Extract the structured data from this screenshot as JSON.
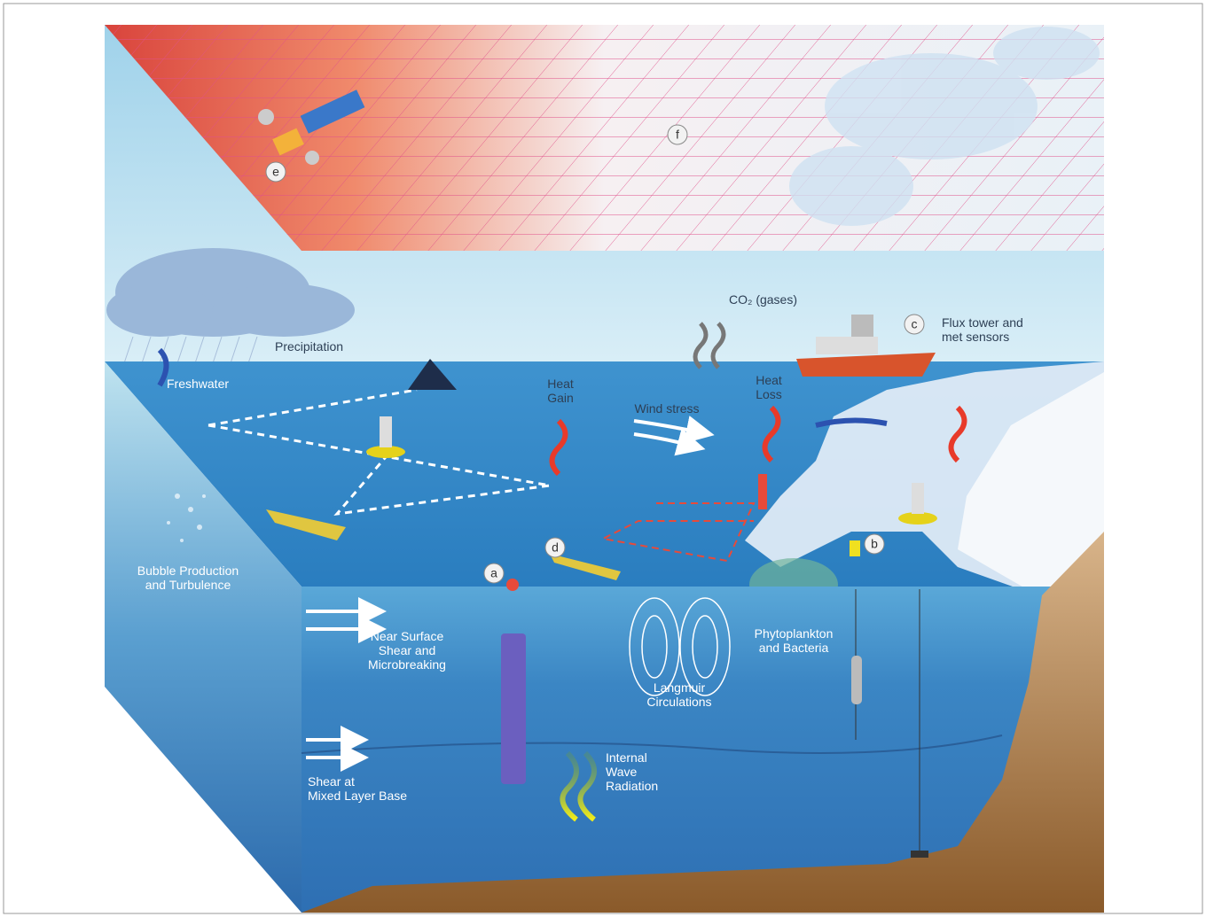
{
  "markers": {
    "a": "a",
    "b": "b",
    "c": "c",
    "d": "d",
    "e": "e",
    "f": "f"
  },
  "labels": {
    "precipitation": [
      "Precipitation"
    ],
    "freshwater": [
      "Freshwater"
    ],
    "co2": [
      "CO₂ (gases)"
    ],
    "flux_tower": [
      "Flux tower and",
      "met sensors"
    ],
    "heat_gain": [
      "Heat",
      "Gain"
    ],
    "heat_loss": [
      "Heat",
      "Loss"
    ],
    "wind_stress": [
      "Wind stress"
    ],
    "bubble": [
      "Bubble Production",
      "and Turbulence"
    ],
    "near_surface": [
      "Near Surface",
      "Shear and",
      "Microbreaking"
    ],
    "langmuir": [
      "Langmuir",
      "Circulations"
    ],
    "phytoplankton": [
      "Phytoplankton",
      "and Bacteria"
    ],
    "internal_wave": [
      "Internal",
      "Wave",
      "Radiation"
    ],
    "shear_base": [
      "Shear at",
      "Mixed Layer Base"
    ]
  }
}
